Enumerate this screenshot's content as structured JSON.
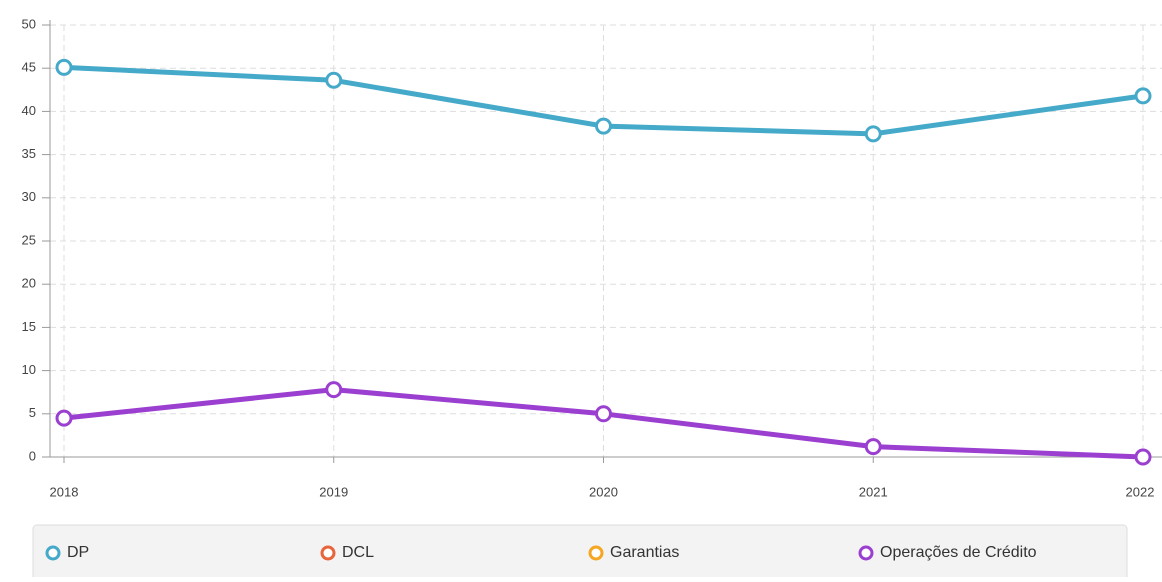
{
  "chart_data": {
    "type": "line",
    "categories": [
      "2018",
      "2019",
      "2020",
      "2021",
      "2022"
    ],
    "series": [
      {
        "name": "DP",
        "color": "#45a9c9",
        "values": [
          45.1,
          43.6,
          38.3,
          37.4,
          41.8
        ]
      },
      {
        "name": "DCL",
        "color": "#e8643c",
        "values": [
          null,
          null,
          null,
          null,
          null
        ]
      },
      {
        "name": "Garantias",
        "color": "#f5a623",
        "values": [
          null,
          null,
          null,
          null,
          null
        ]
      },
      {
        "name": "Operações de Crédito",
        "color": "#9b3fd0",
        "values": [
          4.5,
          7.8,
          5.0,
          1.2,
          0
        ]
      }
    ],
    "ylim": [
      0,
      50
    ],
    "yticks": [
      0,
      5,
      10,
      15,
      20,
      25,
      30,
      35,
      40,
      45,
      50
    ],
    "grid": true,
    "legend": "bottom"
  }
}
